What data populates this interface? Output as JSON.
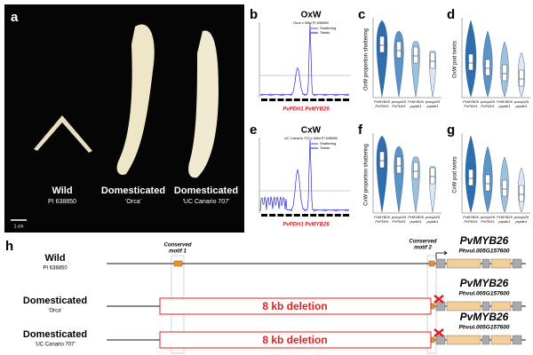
{
  "panels": {
    "a": {
      "label": "a",
      "samples": [
        {
          "name": "Wild",
          "id": "PI 638850"
        },
        {
          "name": "Domesticated",
          "id": "'Orca'"
        },
        {
          "name": "Domesticated",
          "id": "'UC Canario 707'"
        }
      ],
      "scale_bar": "1 cm"
    },
    "b": {
      "label": "b",
      "title": "OxW",
      "subtitle": "Orca x Wild PI 638850",
      "legend": [
        "Shattering",
        "Twists"
      ],
      "genes": [
        "PvPDH1",
        "PvMYB26"
      ]
    },
    "c": {
      "label": "c",
      "ylabel": "OxW proportion shattering",
      "genotypes": [
        [
          "PvMYB26",
          "PvPDH1"
        ],
        [
          "pvmyb26",
          "PvPDH1"
        ],
        [
          "PvMYB26",
          "pvpdh1"
        ],
        [
          "pvmyb26",
          "pvpdh1"
        ]
      ]
    },
    "d": {
      "label": "d",
      "ylabel": "OxW pod twists",
      "genotypes": [
        [
          "PvMYB26",
          "PvPDH1"
        ],
        [
          "pvmyb26",
          "PvPDH1"
        ],
        [
          "PvMYB26",
          "pvpdh1"
        ],
        [
          "pvmyb26",
          "pvpdh1"
        ]
      ]
    },
    "e": {
      "label": "e",
      "title": "CxW",
      "subtitle": "UC Canario 707 x Wild PI 638850",
      "legend": [
        "Shattering",
        "Twists"
      ],
      "genes": [
        "PvPDH1",
        "PvMYB26"
      ]
    },
    "f": {
      "label": "f",
      "ylabel": "CxW proportion shattering",
      "genotypes": [
        [
          "PvMYB26",
          "PvPDH1"
        ],
        [
          "pvmyb26",
          "PvPDH1"
        ],
        [
          "PvMYB26",
          "pvpdh1"
        ],
        [
          "pvmyb26",
          "pvpdh1"
        ]
      ]
    },
    "g": {
      "label": "g",
      "ylabel": "CxW pod twists",
      "genotypes": [
        [
          "PvMYB26",
          "PvPDH1"
        ],
        [
          "pvmyb26",
          "PvPDH1"
        ],
        [
          "PvMYB26",
          "pvpdh1"
        ],
        [
          "pvmyb26",
          "pvpdh1"
        ]
      ]
    },
    "h": {
      "label": "h",
      "motifs": [
        [
          "Conserved",
          "motif 1"
        ],
        [
          "Conserved",
          "motif 2"
        ]
      ],
      "gene": "PvMYB26",
      "gene_id": "Phvul.005G157600",
      "tracks": [
        {
          "name": "Wild",
          "id": "PI 638850"
        },
        {
          "name": "Domesticated",
          "id": "'Orca'",
          "deletion": "8 kb deletion"
        },
        {
          "name": "Domesticated",
          "id": "'UC Canario 707'",
          "deletion": "8 kb deletion"
        }
      ]
    }
  }
}
